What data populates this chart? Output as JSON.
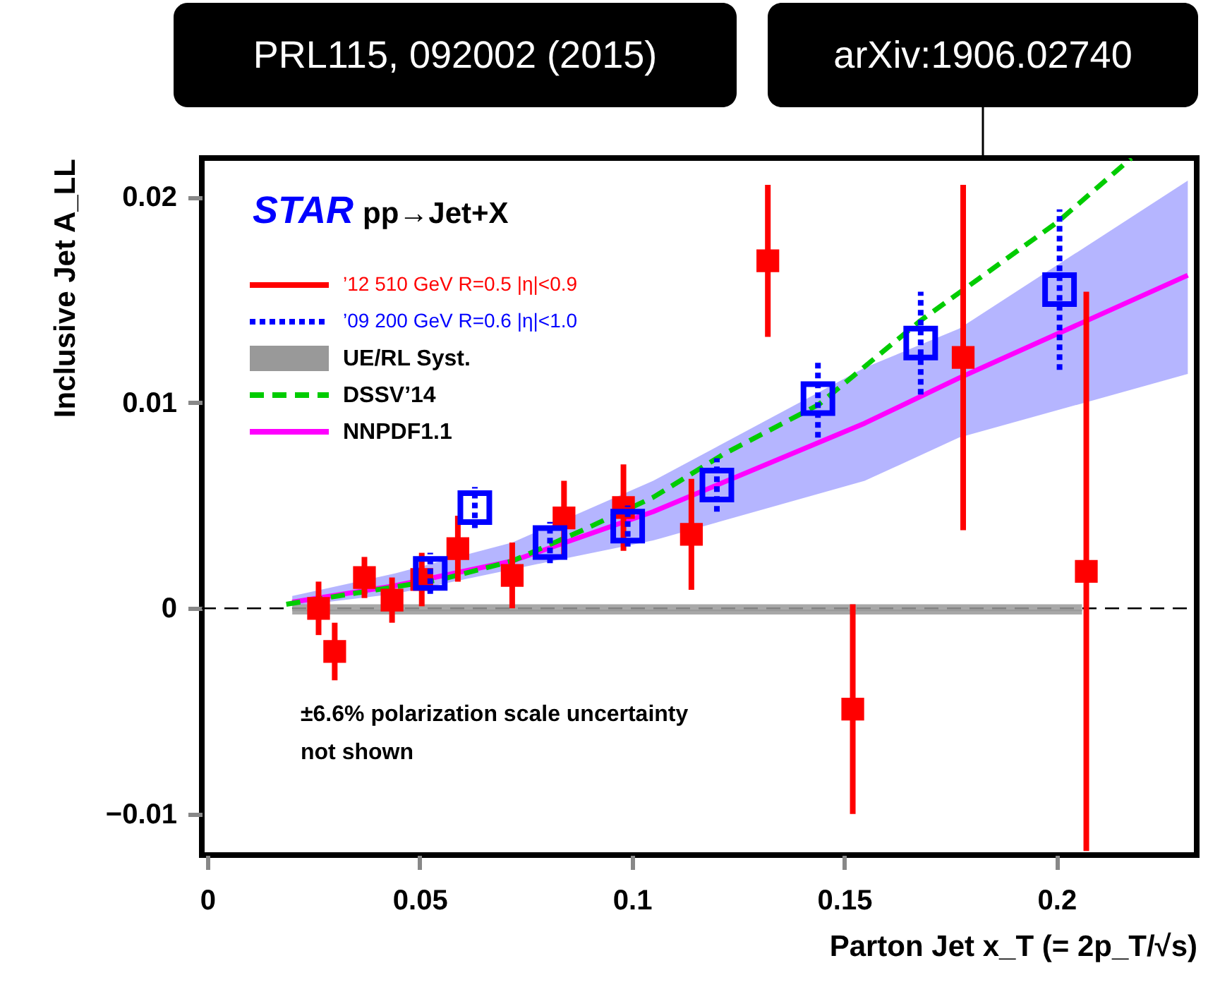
{
  "chart_data": {
    "type": "scatter",
    "xlabel": "Parton Jet x_T (= 2p_T/√s)",
    "ylabel": "Inclusive Jet A_LL",
    "xlim": [
      -0.0013,
      0.233
    ],
    "ylim": [
      -0.012,
      0.0219
    ],
    "xticks": [
      0,
      0.05,
      0.1,
      0.15,
      0.2
    ],
    "yticks": [
      {
        "value": -0.01,
        "label": "−0.01"
      },
      0,
      0.01,
      0.02
    ],
    "grid": false,
    "legend": "top left",
    "ref_lines": [
      {
        "axis": "y",
        "value": 0,
        "color": "#000000",
        "line_style": "dashed"
      }
    ],
    "annotations": [
      "STAR pp→Jet+X",
      "±6.6% polarization scale uncertainty\nnot shown",
      "PRL115, 092002 (2015)",
      "arXiv:1906.02740"
    ],
    "series": [
      {
        "name": "’12 510 GeV R=0.5 |η|<0.9",
        "color": "#ff0000",
        "marker": "square",
        "line_style": "solid",
        "x": [
          0.0262,
          0.03,
          0.037,
          0.0435,
          0.0505,
          0.059,
          0.0718,
          0.084,
          0.098,
          0.114,
          0.132,
          0.152,
          0.178,
          0.207
        ],
        "values": [
          0.0,
          -0.0021,
          0.0015,
          0.0004,
          0.0014,
          0.0029,
          0.0016,
          0.0044,
          0.0049,
          0.0036,
          0.0169,
          -0.0049,
          0.0122,
          0.0018
        ],
        "errors": [
          0.0013,
          0.0014,
          0.001,
          0.0011,
          0.0013,
          0.0016,
          0.0016,
          0.0018,
          0.0021,
          0.0027,
          0.0037,
          0.0051,
          0.0084,
          0.0136
        ]
      },
      {
        "name": "’09 200 GeV R=0.6 |η|<1.0",
        "color": "#0000ff",
        "marker": "square",
        "line_style": "dotted",
        "x": [
          0.0525,
          0.063,
          0.0807,
          0.099,
          0.12,
          0.1438,
          0.168,
          0.2007
        ],
        "values": [
          0.0017,
          0.0049,
          0.0032,
          0.004,
          0.006,
          0.0102,
          0.0129,
          0.0155
        ],
        "errors": [
          0.001,
          0.001,
          0.001,
          0.001,
          0.0013,
          0.0019,
          0.0025,
          0.0039
        ]
      },
      {
        "type": "line",
        "name": "UE/RL Syst.",
        "color": "#999999",
        "x": [
          0.02,
          0.206
        ],
        "values": [
          -0.0001,
          -0.0001
        ],
        "lower": [
          -0.0003,
          -0.0003
        ],
        "upper": [
          0.0002,
          0.0002
        ]
      },
      {
        "type": "line",
        "name": "DSSV’14",
        "color": "#00cc00",
        "line_style": "dashed",
        "x": [
          0.0186,
          0.055,
          0.0718,
          0.0884,
          0.105,
          0.1216,
          0.1439,
          0.168,
          0.2003,
          0.2176
        ],
        "values": [
          0.0002,
          0.0014,
          0.0023,
          0.0038,
          0.0054,
          0.0075,
          0.0099,
          0.014,
          0.0188,
          0.0219
        ]
      },
      {
        "type": "line",
        "name": "NNPDF1.1",
        "color": "#ff00ff",
        "line_style": "solid",
        "x": [
          0.02,
          0.0442,
          0.0718,
          0.105,
          0.1548,
          0.177,
          0.2309
        ],
        "values": [
          0.0003,
          0.0011,
          0.0023,
          0.0047,
          0.009,
          0.0112,
          0.0162
        ],
        "lower": [
          0.0001,
          0.0007,
          0.0019,
          0.0033,
          0.0062,
          0.0083,
          0.0114
        ],
        "upper": [
          0.0006,
          0.0017,
          0.0032,
          0.0062,
          0.0117,
          0.0136,
          0.0208
        ]
      }
    ]
  }
}
